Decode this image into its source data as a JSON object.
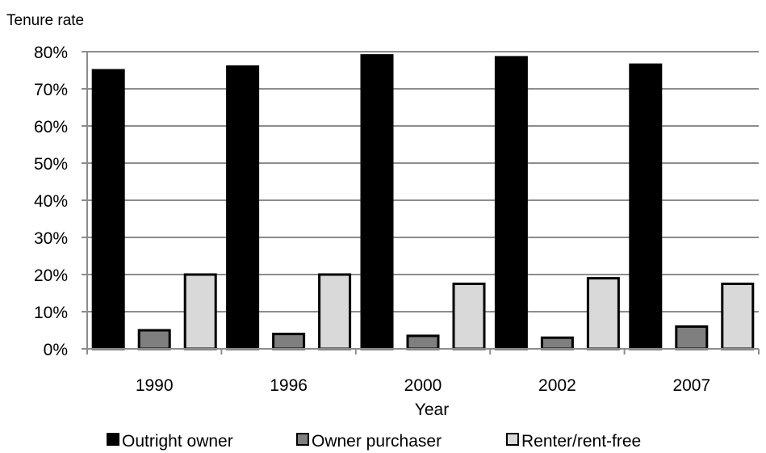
{
  "chart_data": {
    "type": "bar",
    "ylabel": "Tenure rate",
    "xlabel": "Year",
    "categories": [
      "1990",
      "1996",
      "2000",
      "2002",
      "2007"
    ],
    "yticks": [
      "0%",
      "10%",
      "20%",
      "30%",
      "40%",
      "50%",
      "60%",
      "70%",
      "80%"
    ],
    "ylim": [
      0,
      80
    ],
    "grid": true,
    "legend_position": "bottom",
    "series": [
      {
        "name": "Outright owner",
        "values": [
          75,
          76,
          79,
          78.5,
          76.5
        ],
        "color": "#000000"
      },
      {
        "name": "Owner purchaser",
        "values": [
          5,
          4,
          3.5,
          3,
          6
        ],
        "color": "#7f7f7f"
      },
      {
        "name": "Renter/rent-free",
        "values": [
          20,
          20,
          17.5,
          19,
          17.5
        ],
        "color": "#d9d9d9"
      }
    ]
  }
}
